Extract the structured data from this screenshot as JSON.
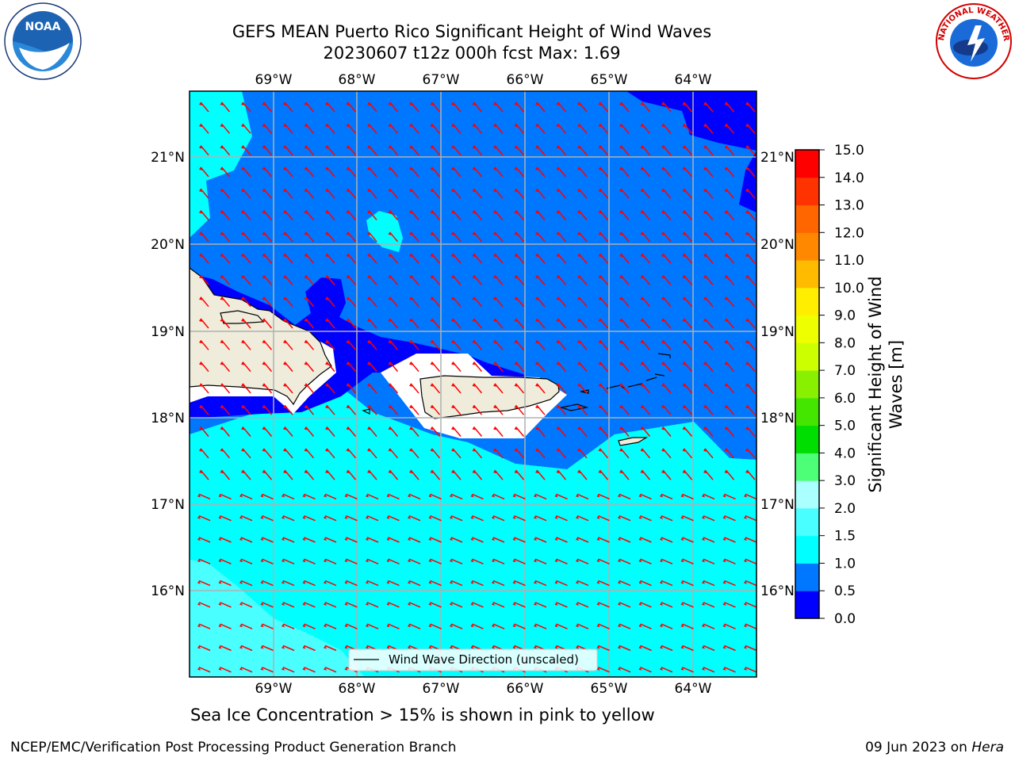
{
  "title_line1": "GEFS MEAN Puerto Rico Significant Height of Wind Waves",
  "title_line2": "20230607 t12z 000h fcst   Max: 1.69",
  "lon_ticks": [
    "69°W",
    "68°W",
    "67°W",
    "66°W",
    "65°W",
    "64°W"
  ],
  "lat_ticks": [
    "21°N",
    "20°N",
    "19°N",
    "18°N",
    "17°N",
    "16°N"
  ],
  "legend_label": "Wind Wave Direction (unscaled)",
  "colorbar": {
    "label": "Significant Height of Wind Waves [m]",
    "ticks": [
      "15.0",
      "14.0",
      "13.0",
      "12.0",
      "11.0",
      "10.0",
      "9.0",
      "8.0",
      "7.0",
      "6.0",
      "5.0",
      "4.0",
      "3.0",
      "2.0",
      "1.5",
      "1.0",
      "0.5",
      "0.0"
    ],
    "colors": [
      "#0000ff",
      "#0077ff",
      "#00ffff",
      "#49ffff",
      "#aaffff",
      "#4dff77",
      "#00dd00",
      "#44e600",
      "#88f000",
      "#ccff00",
      "#eeff00",
      "#ffee00",
      "#ffbb00",
      "#ff8800",
      "#ff6600",
      "#ff3300",
      "#ff0000"
    ]
  },
  "subtitle": "Sea Ice Concentration > 15% is shown in pink to yellow",
  "footer_left": "NCEP/EMC/Verification Post Processing Product Generation Branch",
  "footer_right_date": "09 Jun 2023 on",
  "footer_right_host": "Hera",
  "logos": {
    "left": "NOAA",
    "right": "NATIONAL WEATHER SERVICE"
  },
  "colors": {
    "arrow": "#ff0000",
    "land": "#efecdc",
    "grid": "#b0b0b0"
  }
}
